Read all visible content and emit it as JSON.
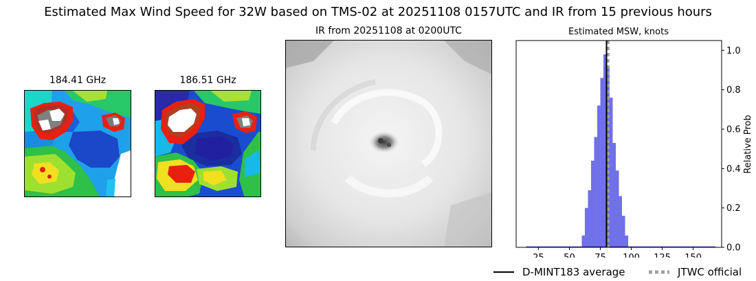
{
  "figure": {
    "title": "Estimated Max Wind Speed for 32W based on TMS-02 at 20251108 0157UTC and IR from 15 previous hours"
  },
  "panels": {
    "mw1_title": "184.41 GHz",
    "mw2_title": "186.51 GHz",
    "ir_title": "IR from 20251108 at 0200UTC"
  },
  "legend": {
    "avg_label": "D-MINT183 average",
    "jtwc_label": "JTWC official"
  },
  "colors": {
    "hist": "#7070e8",
    "avg_line": "#000000",
    "jtwc_line": "#a0a0a0"
  },
  "chart_data": {
    "type": "bar",
    "title": "Estimated MSW, knots",
    "ylabel": "Relative Prob",
    "xlabel": "",
    "xlim": [
      7,
      173
    ],
    "ylim": [
      0,
      1.05
    ],
    "xticks": [
      25,
      50,
      75,
      100,
      125,
      150
    ],
    "yticks": [
      0.0,
      0.2,
      0.4,
      0.6,
      0.8,
      1.0
    ],
    "ytick_labels": [
      "0.0",
      "0.2",
      "0.4",
      "0.6",
      "0.8",
      "1.0"
    ],
    "bin_width": 2.5,
    "bins": [
      {
        "x": 61.25,
        "v": 0.06
      },
      {
        "x": 63.75,
        "v": 0.2
      },
      {
        "x": 66.25,
        "v": 0.29
      },
      {
        "x": 68.75,
        "v": 0.44
      },
      {
        "x": 71.25,
        "v": 0.56
      },
      {
        "x": 73.75,
        "v": 0.72
      },
      {
        "x": 76.25,
        "v": 0.86
      },
      {
        "x": 78.75,
        "v": 0.98
      },
      {
        "x": 81.25,
        "v": 0.92
      },
      {
        "x": 83.75,
        "v": 0.76
      },
      {
        "x": 86.25,
        "v": 0.53
      },
      {
        "x": 88.75,
        "v": 0.39
      },
      {
        "x": 91.25,
        "v": 0.26
      },
      {
        "x": 93.75,
        "v": 0.16
      },
      {
        "x": 96.25,
        "v": 0.06
      }
    ],
    "baseline_range": [
      15,
      168
    ],
    "avg_value": 80,
    "jtwc_value": 81
  }
}
